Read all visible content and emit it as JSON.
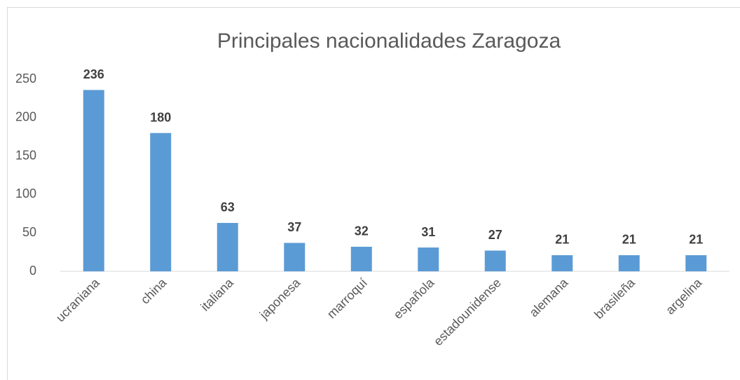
{
  "chart_data": {
    "type": "bar",
    "title": "Principales nacionalidades Zaragoza",
    "categories": [
      "ucraniana",
      "china",
      "italiana",
      "japonesa",
      "marroquí",
      "española",
      "estadounidense",
      "alemana",
      "brasileña",
      "argelina"
    ],
    "values": [
      236,
      180,
      63,
      37,
      32,
      31,
      27,
      21,
      21,
      21
    ],
    "color": "#5b9bd5",
    "ylim": [
      0,
      250
    ],
    "yticks": [
      0,
      50,
      100,
      150,
      200,
      250
    ],
    "grid": false
  }
}
